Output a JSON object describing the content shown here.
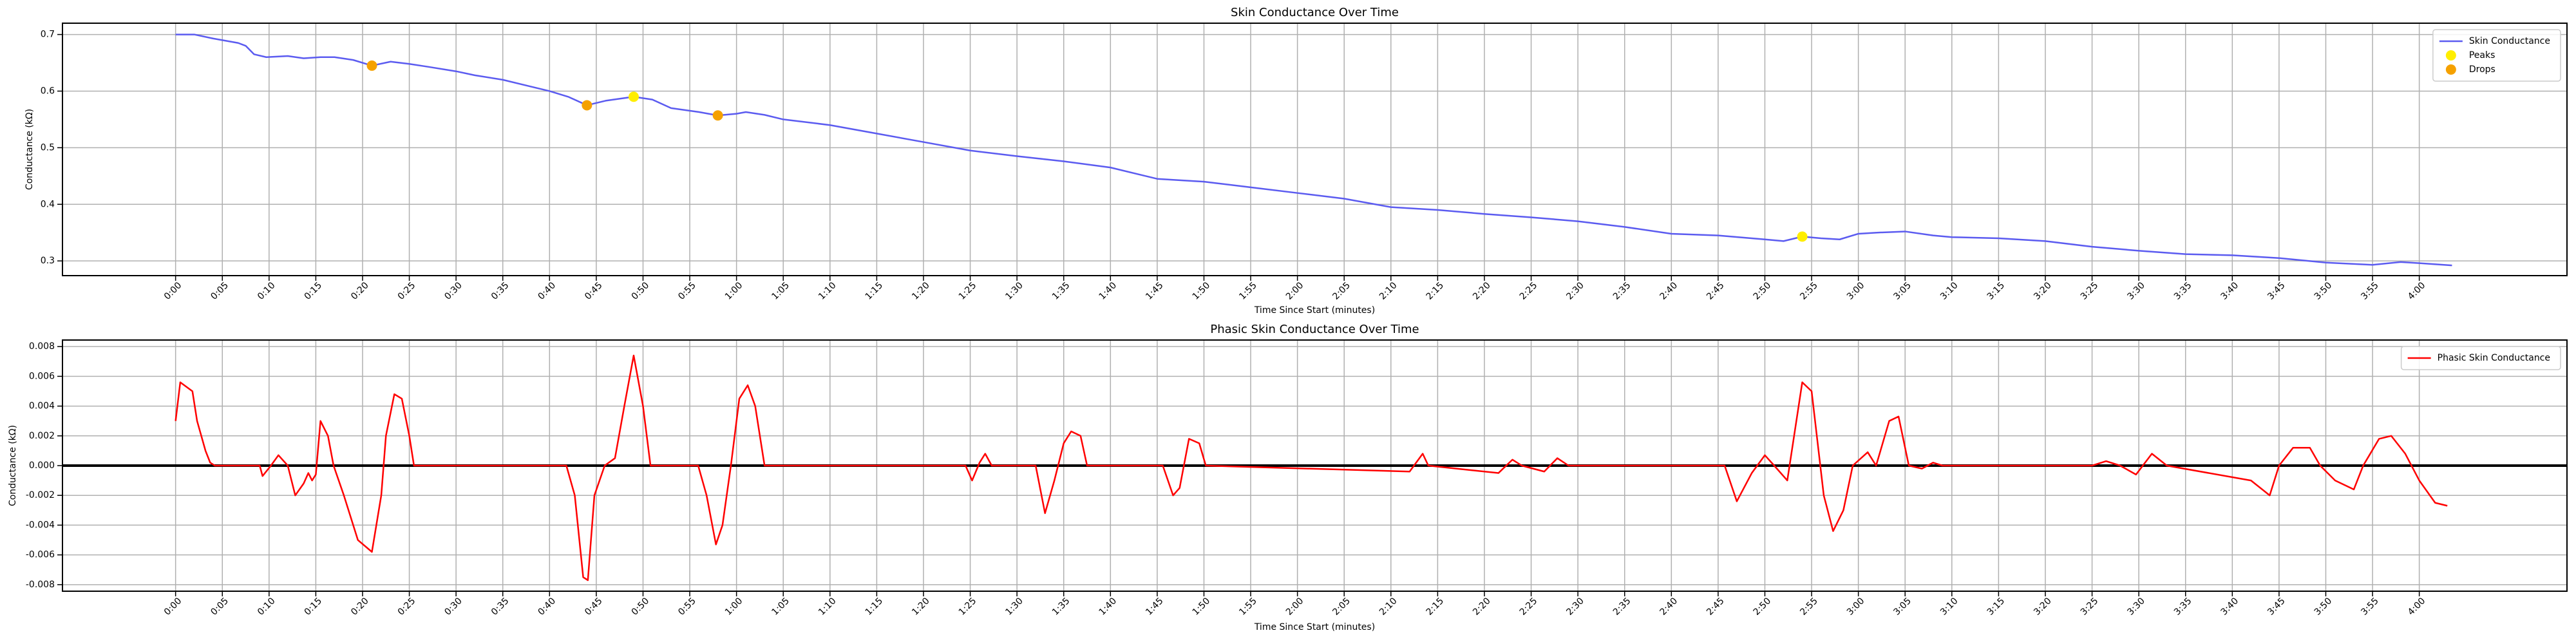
{
  "chart_data": [
    {
      "type": "line",
      "title": "Skin Conductance Over Time",
      "xlabel": "Time Since Start (minutes)",
      "ylabel": "Conductance (kΩ)",
      "xlim": [
        -12.1,
        255.8
      ],
      "ylim": [
        0.274,
        0.72
      ],
      "grid": true,
      "legend": "upper right",
      "xticks": [
        {
          "value": 0,
          "label": "0:00"
        },
        {
          "value": 5,
          "label": "0:05"
        },
        {
          "value": 10,
          "label": "0:10"
        },
        {
          "value": 15,
          "label": "0:15"
        },
        {
          "value": 20,
          "label": "0:20"
        },
        {
          "value": 25,
          "label": "0:25"
        },
        {
          "value": 30,
          "label": "0:30"
        },
        {
          "value": 35,
          "label": "0:35"
        },
        {
          "value": 40,
          "label": "0:40"
        },
        {
          "value": 45,
          "label": "0:45"
        },
        {
          "value": 50,
          "label": "0:50"
        },
        {
          "value": 55,
          "label": "0:55"
        },
        {
          "value": 60,
          "label": "1:00"
        },
        {
          "value": 65,
          "label": "1:05"
        },
        {
          "value": 70,
          "label": "1:10"
        },
        {
          "value": 75,
          "label": "1:15"
        },
        {
          "value": 80,
          "label": "1:20"
        },
        {
          "value": 85,
          "label": "1:25"
        },
        {
          "value": 90,
          "label": "1:30"
        },
        {
          "value": 95,
          "label": "1:35"
        },
        {
          "value": 100,
          "label": "1:40"
        },
        {
          "value": 105,
          "label": "1:45"
        },
        {
          "value": 110,
          "label": "1:50"
        },
        {
          "value": 115,
          "label": "1:55"
        },
        {
          "value": 120,
          "label": "2:00"
        },
        {
          "value": 125,
          "label": "2:05"
        },
        {
          "value": 130,
          "label": "2:10"
        },
        {
          "value": 135,
          "label": "2:15"
        },
        {
          "value": 140,
          "label": "2:20"
        },
        {
          "value": 145,
          "label": "2:25"
        },
        {
          "value": 150,
          "label": "2:30"
        },
        {
          "value": 155,
          "label": "2:35"
        },
        {
          "value": 160,
          "label": "2:40"
        },
        {
          "value": 165,
          "label": "2:45"
        },
        {
          "value": 170,
          "label": "2:50"
        },
        {
          "value": 175,
          "label": "2:55"
        },
        {
          "value": 180,
          "label": "3:00"
        },
        {
          "value": 185,
          "label": "3:05"
        },
        {
          "value": 190,
          "label": "3:10"
        },
        {
          "value": 195,
          "label": "3:15"
        },
        {
          "value": 200,
          "label": "3:20"
        },
        {
          "value": 205,
          "label": "3:25"
        },
        {
          "value": 210,
          "label": "3:30"
        },
        {
          "value": 215,
          "label": "3:35"
        },
        {
          "value": 220,
          "label": "3:40"
        },
        {
          "value": 225,
          "label": "3:45"
        },
        {
          "value": 230,
          "label": "3:50"
        },
        {
          "value": 235,
          "label": "3:55"
        },
        {
          "value": 240,
          "label": "4:00"
        }
      ],
      "yticks": [
        0.3,
        0.4,
        0.5,
        0.6,
        0.7
      ],
      "series": [
        {
          "name": "Skin Conductance",
          "type": "line",
          "color": "#5b5bf0",
          "x": [
            0,
            2,
            4,
            6.7,
            7.5,
            8.4,
            9.7,
            12,
            13.7,
            15.5,
            17,
            19,
            21,
            23,
            25,
            27,
            30,
            32,
            35,
            38,
            40,
            42,
            44,
            46,
            49,
            51,
            53,
            56,
            58,
            60,
            61,
            63,
            65,
            70,
            75,
            80,
            85,
            90,
            95,
            100,
            105,
            110,
            115,
            120,
            125,
            130,
            135,
            140,
            145,
            150,
            155,
            160,
            165,
            170,
            172,
            174,
            176,
            178,
            180,
            182,
            185,
            188,
            190,
            195,
            200,
            205,
            210,
            215,
            220,
            225,
            230,
            235,
            238,
            240,
            243.5
          ],
          "values": [
            0.7,
            0.7,
            0.693,
            0.685,
            0.68,
            0.665,
            0.66,
            0.662,
            0.658,
            0.66,
            0.66,
            0.655,
            0.645,
            0.652,
            0.648,
            0.643,
            0.635,
            0.628,
            0.62,
            0.608,
            0.6,
            0.59,
            0.575,
            0.583,
            0.59,
            0.585,
            0.57,
            0.563,
            0.557,
            0.56,
            0.563,
            0.558,
            0.55,
            0.54,
            0.525,
            0.51,
            0.495,
            0.485,
            0.476,
            0.465,
            0.445,
            0.44,
            0.43,
            0.42,
            0.41,
            0.395,
            0.39,
            0.383,
            0.377,
            0.37,
            0.36,
            0.348,
            0.345,
            0.338,
            0.335,
            0.343,
            0.34,
            0.338,
            0.348,
            0.35,
            0.352,
            0.345,
            0.342,
            0.34,
            0.335,
            0.325,
            0.318,
            0.312,
            0.31,
            0.305,
            0.297,
            0.293,
            0.298,
            0.296,
            0.292
          ]
        },
        {
          "name": "Peaks",
          "type": "scatter",
          "color": "#ffee00",
          "x": [
            49,
            174
          ],
          "values": [
            0.59,
            0.343
          ]
        },
        {
          "name": "Drops",
          "type": "scatter",
          "color": "#f5a100",
          "x": [
            21,
            44,
            58
          ],
          "values": [
            0.645,
            0.575,
            0.557
          ]
        }
      ]
    },
    {
      "type": "line",
      "title": "Phasic Skin Conductance Over Time",
      "xlabel": "Time Since Start (minutes)",
      "ylabel": "Conductance (kΩ)",
      "xlim": [
        -12.1,
        255.8
      ],
      "ylim": [
        -0.00844,
        0.00844
      ],
      "grid": true,
      "legend": "upper right",
      "hlines": [
        0
      ],
      "xticks": [
        {
          "value": 0,
          "label": "0:00"
        },
        {
          "value": 5,
          "label": "0:05"
        },
        {
          "value": 10,
          "label": "0:10"
        },
        {
          "value": 15,
          "label": "0:15"
        },
        {
          "value": 20,
          "label": "0:20"
        },
        {
          "value": 25,
          "label": "0:25"
        },
        {
          "value": 30,
          "label": "0:30"
        },
        {
          "value": 35,
          "label": "0:35"
        },
        {
          "value": 40,
          "label": "0:40"
        },
        {
          "value": 45,
          "label": "0:45"
        },
        {
          "value": 50,
          "label": "0:50"
        },
        {
          "value": 55,
          "label": "0:55"
        },
        {
          "value": 60,
          "label": "1:00"
        },
        {
          "value": 65,
          "label": "1:05"
        },
        {
          "value": 70,
          "label": "1:10"
        },
        {
          "value": 75,
          "label": "1:15"
        },
        {
          "value": 80,
          "label": "1:20"
        },
        {
          "value": 85,
          "label": "1:25"
        },
        {
          "value": 90,
          "label": "1:30"
        },
        {
          "value": 95,
          "label": "1:35"
        },
        {
          "value": 100,
          "label": "1:40"
        },
        {
          "value": 105,
          "label": "1:45"
        },
        {
          "value": 110,
          "label": "1:50"
        },
        {
          "value": 115,
          "label": "1:55"
        },
        {
          "value": 120,
          "label": "2:00"
        },
        {
          "value": 125,
          "label": "2:05"
        },
        {
          "value": 130,
          "label": "2:10"
        },
        {
          "value": 135,
          "label": "2:15"
        },
        {
          "value": 140,
          "label": "2:20"
        },
        {
          "value": 145,
          "label": "2:25"
        },
        {
          "value": 150,
          "label": "2:30"
        },
        {
          "value": 155,
          "label": "2:35"
        },
        {
          "value": 160,
          "label": "2:40"
        },
        {
          "value": 165,
          "label": "2:45"
        },
        {
          "value": 170,
          "label": "2:50"
        },
        {
          "value": 175,
          "label": "2:55"
        },
        {
          "value": 180,
          "label": "3:00"
        },
        {
          "value": 185,
          "label": "3:05"
        },
        {
          "value": 190,
          "label": "3:10"
        },
        {
          "value": 195,
          "label": "3:15"
        },
        {
          "value": 200,
          "label": "3:20"
        },
        {
          "value": 205,
          "label": "3:25"
        },
        {
          "value": 210,
          "label": "3:30"
        },
        {
          "value": 215,
          "label": "3:35"
        },
        {
          "value": 220,
          "label": "3:40"
        },
        {
          "value": 225,
          "label": "3:45"
        },
        {
          "value": 230,
          "label": "3:50"
        },
        {
          "value": 235,
          "label": "3:55"
        },
        {
          "value": 240,
          "label": "4:00"
        }
      ],
      "yticks": [
        -0.008,
        -0.006,
        -0.004,
        -0.002,
        {
          "value": 0,
          "label": "0.000"
        },
        0.002,
        0.004,
        0.006,
        0.008
      ],
      "series": [
        {
          "name": "Phasic Skin Conductance",
          "type": "line",
          "color": "#ff0000",
          "x": [
            0,
            0.5,
            1.8,
            2.3,
            3.2,
            3.7,
            4.2,
            9,
            9.3,
            10.2,
            11,
            12,
            12.8,
            13.7,
            14.2,
            14.6,
            15,
            15.5,
            16.3,
            16.9,
            18,
            19.5,
            21,
            22,
            22.5,
            23.4,
            24.2,
            25,
            25.5,
            41.8,
            42.7,
            43.6,
            44.1,
            44.8,
            45.9,
            47,
            48,
            49,
            50,
            50.8,
            55.9,
            56.8,
            57.8,
            58.5,
            59.4,
            60.3,
            61.2,
            62,
            63,
            84.5,
            85.2,
            86,
            86.6,
            87.3,
            92,
            93,
            94,
            95,
            95.8,
            96.8,
            97.5,
            105.6,
            106.7,
            107.4,
            108.4,
            109.5,
            110.2,
            132,
            133.4,
            134,
            141.5,
            143,
            144,
            146.4,
            147.8,
            149,
            165.7,
            167,
            168.6,
            170,
            171,
            172.4,
            174,
            175,
            176.3,
            177.3,
            178.4,
            179.4,
            181,
            181.9,
            183.3,
            184.3,
            185.4,
            186.8,
            188,
            189,
            205,
            206.5,
            208,
            209.7,
            211.4,
            213,
            222,
            224,
            225,
            226.5,
            228.3,
            229.4,
            231,
            233,
            234,
            235.7,
            237,
            238.5,
            240,
            241.7,
            243
          ],
          "values": [
            0.003,
            0.0056,
            0.005,
            0.003,
            0.001,
            0.0002,
            0,
            0,
            -0.0007,
            0,
            0.0007,
            0,
            -0.002,
            -0.0012,
            -0.0005,
            -0.001,
            -0.0006,
            0.003,
            0.002,
            0,
            -0.002,
            -0.005,
            -0.0058,
            -0.002,
            0.002,
            0.0048,
            0.0045,
            0.002,
            0,
            0,
            -0.002,
            -0.0075,
            -0.0077,
            -0.002,
            0,
            0.0005,
            0.004,
            0.0074,
            0.004,
            0,
            0,
            -0.002,
            -0.0053,
            -0.004,
            0,
            0.0045,
            0.0054,
            0.004,
            0,
            0,
            -0.001,
            0.0002,
            0.0008,
            0,
            0,
            -0.0032,
            -0.001,
            0.0015,
            0.0023,
            0.002,
            0,
            0,
            -0.002,
            -0.0015,
            0.0018,
            0.0015,
            0,
            -0.0004,
            0.0008,
            0,
            -0.0005,
            0.0004,
            0,
            -0.0004,
            0.0005,
            0,
            0,
            -0.0024,
            -0.0005,
            0.0007,
            0,
            -0.001,
            0.0056,
            0.005,
            -0.002,
            -0.0044,
            -0.003,
            0,
            0.0009,
            0,
            0.003,
            0.0033,
            0,
            -0.0002,
            0.0002,
            0,
            0,
            0.0003,
            0,
            -0.0006,
            0.0008,
            0,
            -0.001,
            -0.002,
            0,
            0.0012,
            0.0012,
            0,
            -0.001,
            -0.0016,
            0,
            0.0018,
            0.002,
            0.0008,
            -0.001,
            -0.0025,
            -0.0027
          ]
        }
      ]
    }
  ]
}
